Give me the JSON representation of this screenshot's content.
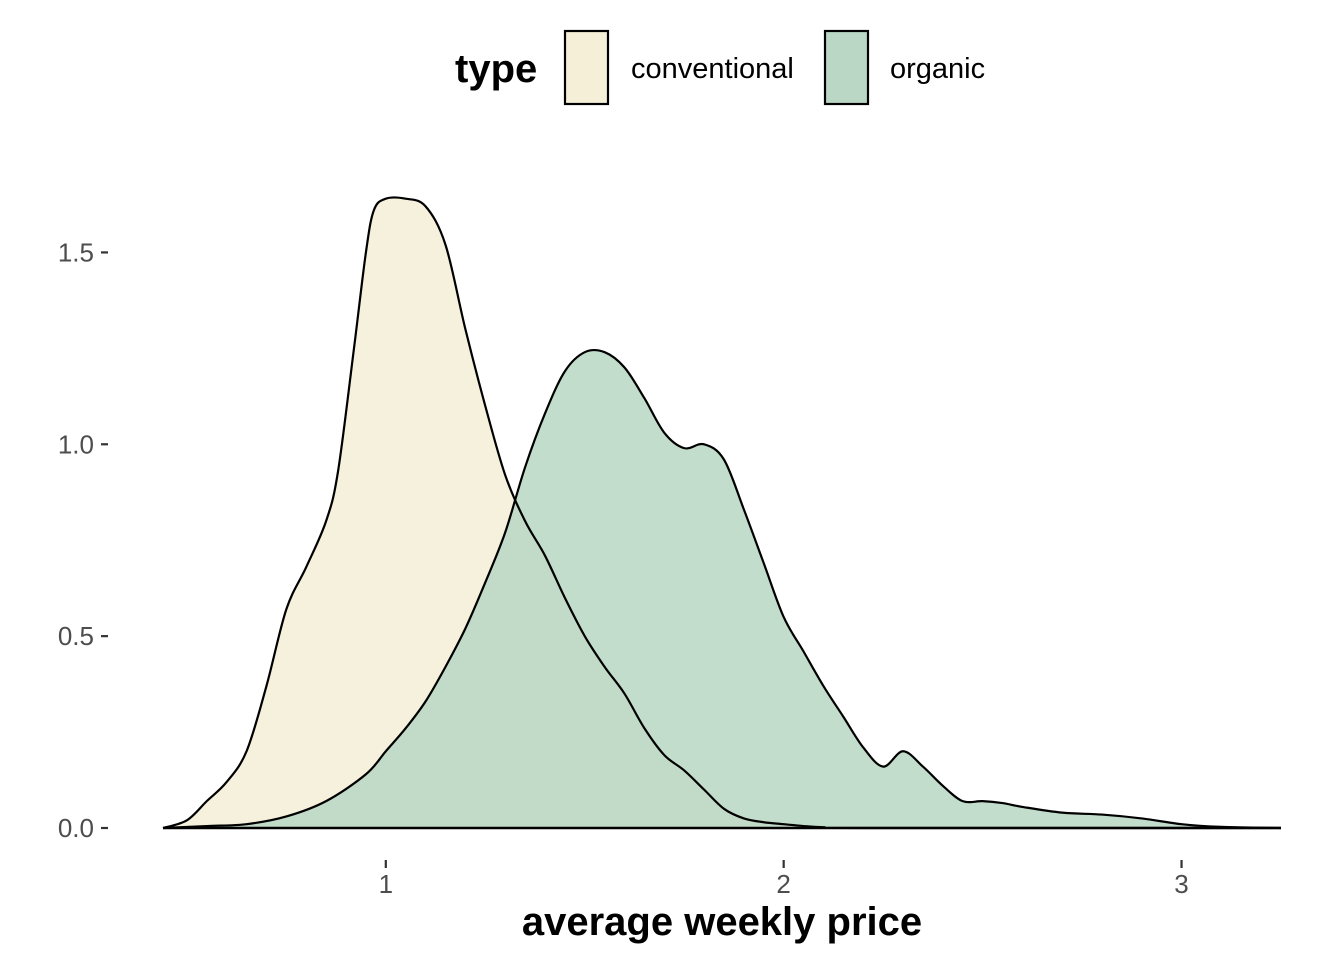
{
  "chart_data": {
    "type": "area",
    "subtype": "density",
    "title": "",
    "xlabel": "average weekly price",
    "ylabel": "",
    "xlim": [
      0.44,
      3.25
    ],
    "ylim": [
      0,
      1.72
    ],
    "x_ticks": [
      1,
      2,
      3
    ],
    "x_tick_labels": [
      "1",
      "2",
      "3"
    ],
    "y_ticks": [
      0,
      0.5,
      1.0,
      1.5
    ],
    "y_tick_labels": [
      "0.0",
      "0.5",
      "1.0",
      "1.5"
    ],
    "grid": false,
    "legend": {
      "title": "type",
      "position": "top"
    },
    "series": [
      {
        "name": "conventional",
        "color": "#f5efd7",
        "points": [
          [
            0.44,
            0.0
          ],
          [
            0.5,
            0.02
          ],
          [
            0.55,
            0.07
          ],
          [
            0.6,
            0.12
          ],
          [
            0.65,
            0.2
          ],
          [
            0.7,
            0.37
          ],
          [
            0.75,
            0.57
          ],
          [
            0.8,
            0.68
          ],
          [
            0.85,
            0.8
          ],
          [
            0.88,
            0.93
          ],
          [
            0.92,
            1.25
          ],
          [
            0.95,
            1.5
          ],
          [
            0.97,
            1.61
          ],
          [
            1.0,
            1.64
          ],
          [
            1.05,
            1.64
          ],
          [
            1.1,
            1.62
          ],
          [
            1.15,
            1.52
          ],
          [
            1.2,
            1.3
          ],
          [
            1.25,
            1.1
          ],
          [
            1.3,
            0.92
          ],
          [
            1.35,
            0.8
          ],
          [
            1.4,
            0.71
          ],
          [
            1.45,
            0.6
          ],
          [
            1.5,
            0.5
          ],
          [
            1.55,
            0.42
          ],
          [
            1.6,
            0.35
          ],
          [
            1.65,
            0.26
          ],
          [
            1.7,
            0.19
          ],
          [
            1.75,
            0.15
          ],
          [
            1.8,
            0.1
          ],
          [
            1.85,
            0.05
          ],
          [
            1.9,
            0.025
          ],
          [
            1.95,
            0.015
          ],
          [
            2.0,
            0.01
          ],
          [
            2.05,
            0.005
          ],
          [
            2.1,
            0.002
          ],
          [
            2.2,
            0.0
          ],
          [
            3.25,
            0.0
          ]
        ]
      },
      {
        "name": "organic",
        "color": "#b9d7c4",
        "points": [
          [
            0.44,
            0.0
          ],
          [
            0.55,
            0.005
          ],
          [
            0.65,
            0.01
          ],
          [
            0.75,
            0.03
          ],
          [
            0.85,
            0.07
          ],
          [
            0.95,
            0.14
          ],
          [
            1.0,
            0.2
          ],
          [
            1.05,
            0.26
          ],
          [
            1.1,
            0.33
          ],
          [
            1.15,
            0.42
          ],
          [
            1.2,
            0.52
          ],
          [
            1.25,
            0.64
          ],
          [
            1.3,
            0.77
          ],
          [
            1.35,
            0.94
          ],
          [
            1.4,
            1.08
          ],
          [
            1.45,
            1.19
          ],
          [
            1.5,
            1.24
          ],
          [
            1.55,
            1.24
          ],
          [
            1.6,
            1.2
          ],
          [
            1.65,
            1.12
          ],
          [
            1.7,
            1.03
          ],
          [
            1.75,
            0.99
          ],
          [
            1.8,
            1.0
          ],
          [
            1.85,
            0.96
          ],
          [
            1.9,
            0.83
          ],
          [
            1.95,
            0.69
          ],
          [
            2.0,
            0.55
          ],
          [
            2.05,
            0.46
          ],
          [
            2.1,
            0.37
          ],
          [
            2.15,
            0.29
          ],
          [
            2.2,
            0.21
          ],
          [
            2.25,
            0.16
          ],
          [
            2.3,
            0.2
          ],
          [
            2.35,
            0.16
          ],
          [
            2.4,
            0.11
          ],
          [
            2.45,
            0.07
          ],
          [
            2.5,
            0.07
          ],
          [
            2.55,
            0.065
          ],
          [
            2.6,
            0.055
          ],
          [
            2.7,
            0.04
          ],
          [
            2.8,
            0.035
          ],
          [
            2.9,
            0.025
          ],
          [
            3.0,
            0.01
          ],
          [
            3.1,
            0.003
          ],
          [
            3.25,
            0.0
          ]
        ]
      }
    ]
  }
}
